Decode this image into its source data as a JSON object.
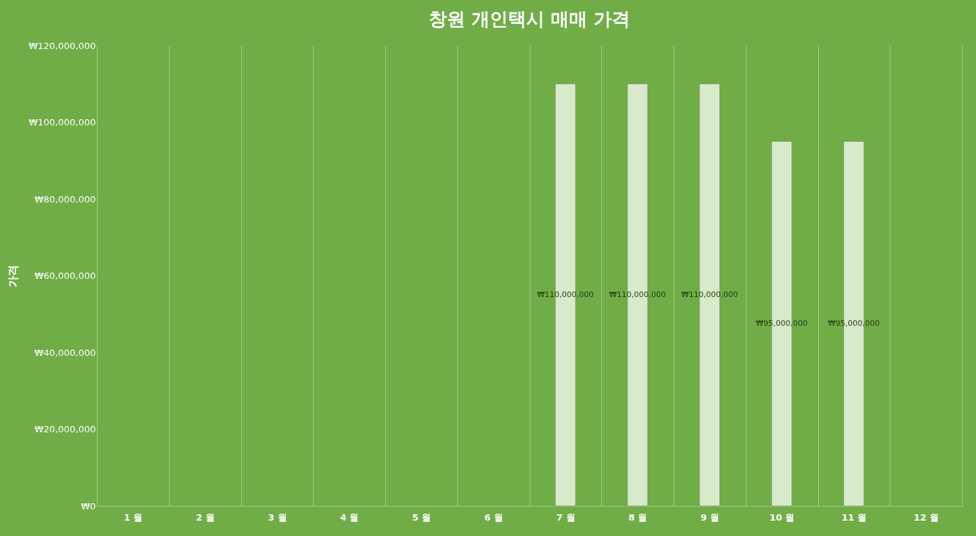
{
  "chart_data": {
    "type": "bar",
    "title": "창원 개인택시 매매 가격",
    "ylabel": "가격",
    "categories": [
      "1 월",
      "2 월",
      "3 월",
      "4 월",
      "5 월",
      "6 월",
      "7 월",
      "8 월",
      "9 월",
      "10 월",
      "11 월",
      "12 월"
    ],
    "values": [
      null,
      null,
      null,
      null,
      null,
      null,
      110000000,
      110000000,
      110000000,
      95000000,
      95000000,
      null
    ],
    "value_labels": [
      null,
      null,
      null,
      null,
      null,
      null,
      "₩110,000,000",
      "₩110,000,000",
      "₩110,000,000",
      "₩95,000,000",
      "₩95,000,000",
      null
    ],
    "color": "#d9e9cc",
    "ylim": [
      0,
      120000000
    ],
    "yticks": [
      {
        "value": 0,
        "label": "₩0"
      },
      {
        "value": 20000000,
        "label": "₩20,000,000"
      },
      {
        "value": 40000000,
        "label": "₩40,000,000"
      },
      {
        "value": 60000000,
        "label": "₩60,000,000"
      },
      {
        "value": 80000000,
        "label": "₩80,000,000"
      },
      {
        "value": 100000000,
        "label": "₩100,000,000"
      },
      {
        "value": 120000000,
        "label": "₩120,000,000"
      }
    ],
    "grid": "x",
    "legend": false
  }
}
